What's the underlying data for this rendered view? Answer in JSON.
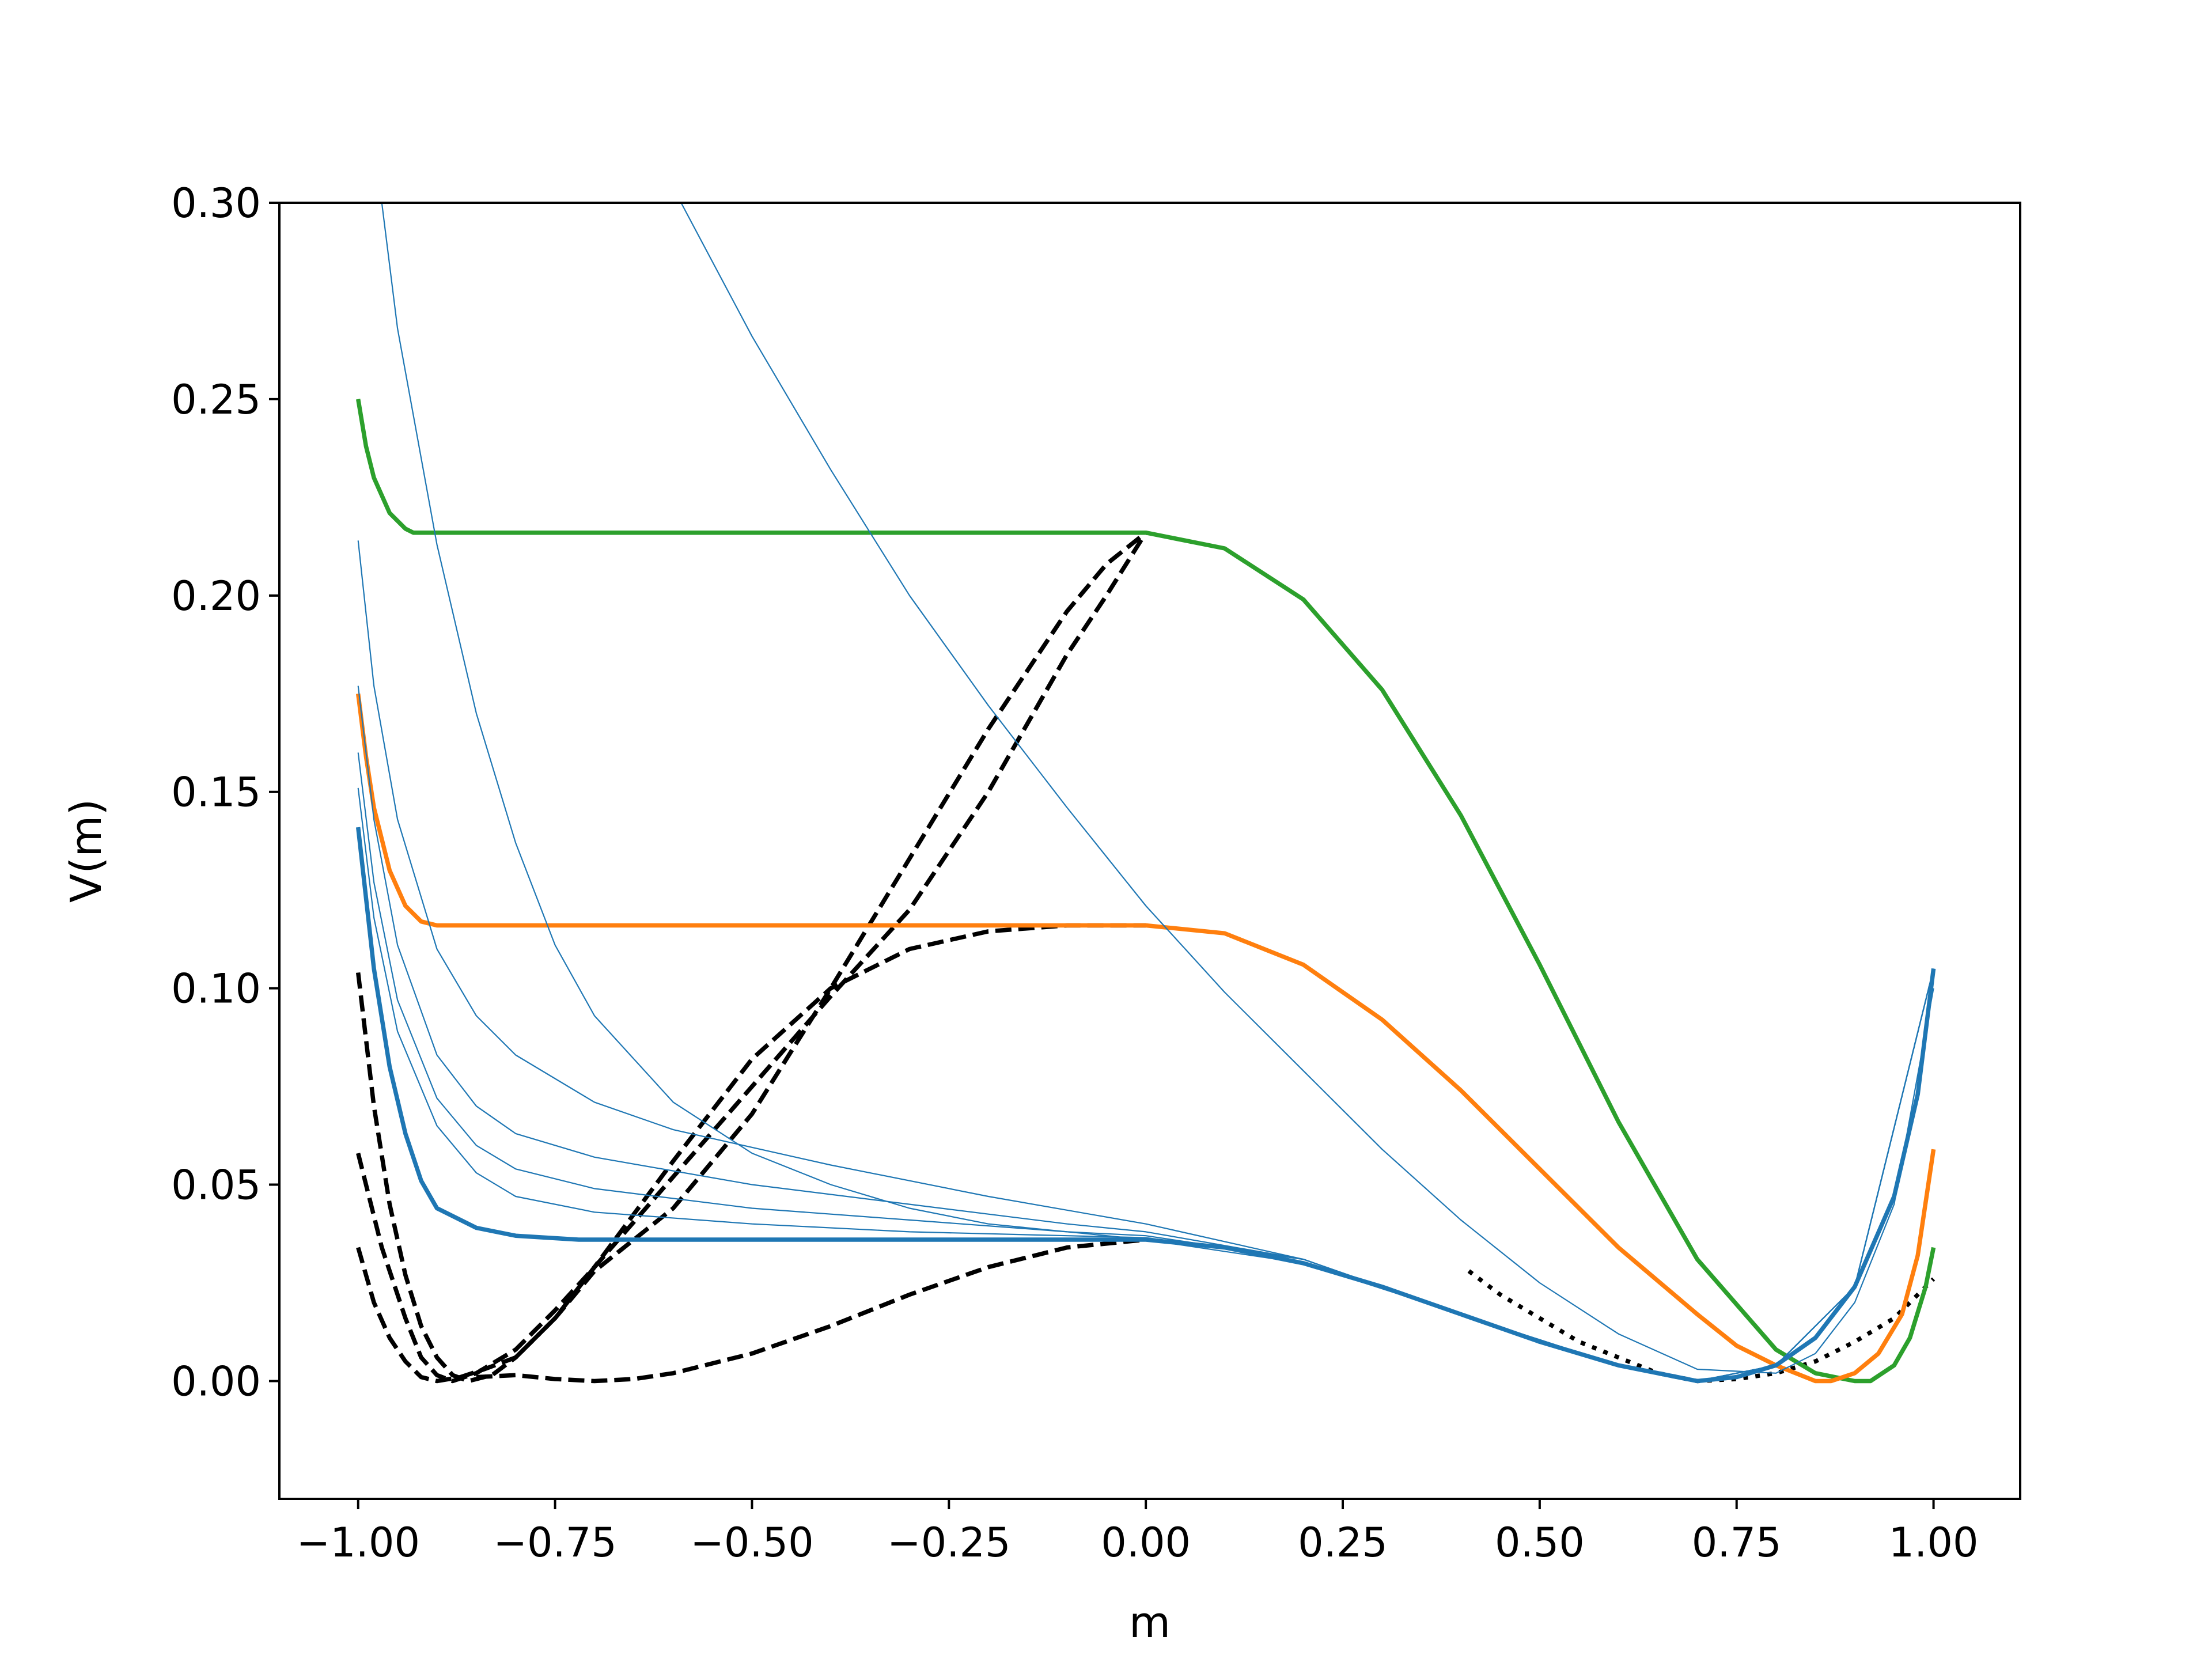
{
  "chart_data": {
    "type": "line",
    "xlabel": "m",
    "ylabel": "V(m)",
    "xlim": [
      -1.1,
      1.11
    ],
    "ylim": [
      -0.03,
      0.3
    ],
    "xticks": [
      -1.0,
      -0.75,
      -0.5,
      -0.25,
      0.0,
      0.25,
      0.5,
      0.75,
      1.0
    ],
    "xtick_labels": [
      "−1.00",
      "−0.75",
      "−0.50",
      "−0.25",
      "0.00",
      "0.25",
      "0.50",
      "0.75",
      "1.00"
    ],
    "yticks": [
      0.0,
      0.05,
      0.1,
      0.15,
      0.2,
      0.25,
      0.3
    ],
    "ytick_labels": [
      "0.00",
      "0.05",
      "0.10",
      "0.15",
      "0.20",
      "0.25",
      "0.30"
    ],
    "grid": false,
    "legend": "none",
    "series": [
      {
        "style": "dashed",
        "color": "#000000",
        "width": "thick",
        "points": [
          [
            -1.0,
            0.104
          ],
          [
            -0.98,
            0.07
          ],
          [
            -0.96,
            0.045
          ],
          [
            -0.94,
            0.027
          ],
          [
            -0.92,
            0.014
          ],
          [
            -0.9,
            0.006
          ],
          [
            -0.88,
            0.0015
          ],
          [
            -0.86,
            0.0
          ],
          [
            -0.83,
            0.0015
          ],
          [
            -0.8,
            0.006
          ],
          [
            -0.75,
            0.016
          ],
          [
            -0.7,
            0.029
          ],
          [
            -0.6,
            0.056
          ],
          [
            -0.5,
            0.082
          ],
          [
            -0.4,
            0.1
          ],
          [
            -0.3,
            0.11
          ],
          [
            -0.2,
            0.1145
          ],
          [
            -0.1,
            0.116
          ],
          [
            0.0,
            0.116
          ]
        ]
      },
      {
        "style": "dashed",
        "color": "#000000",
        "width": "thick",
        "points": [
          [
            -1.0,
            0.058
          ],
          [
            -0.97,
            0.034
          ],
          [
            -0.94,
            0.016
          ],
          [
            -0.92,
            0.006
          ],
          [
            -0.9,
            0.0015
          ],
          [
            -0.88,
            0.0
          ],
          [
            -0.85,
            0.002
          ],
          [
            -0.8,
            0.008
          ],
          [
            -0.75,
            0.018
          ],
          [
            -0.7,
            0.029
          ],
          [
            -0.6,
            0.052
          ],
          [
            -0.5,
            0.075
          ],
          [
            -0.4,
            0.098
          ],
          [
            -0.3,
            0.12
          ],
          [
            -0.2,
            0.15
          ],
          [
            -0.1,
            0.185
          ],
          [
            -0.05,
            0.2
          ],
          [
            0.0,
            0.216
          ]
        ]
      },
      {
        "style": "dashed",
        "color": "#000000",
        "width": "thick",
        "points": [
          [
            -1.0,
            0.034
          ],
          [
            -0.98,
            0.02
          ],
          [
            -0.96,
            0.011
          ],
          [
            -0.94,
            0.005
          ],
          [
            -0.92,
            0.001
          ],
          [
            -0.9,
            0.0
          ],
          [
            -0.87,
            0.001
          ],
          [
            -0.84,
            0.003
          ],
          [
            -0.8,
            0.006
          ],
          [
            -0.75,
            0.016
          ],
          [
            -0.7,
            0.028
          ],
          [
            -0.6,
            0.044
          ],
          [
            -0.5,
            0.068
          ],
          [
            -0.4,
            0.1
          ],
          [
            -0.3,
            0.133
          ],
          [
            -0.2,
            0.166
          ],
          [
            -0.1,
            0.196
          ],
          [
            -0.05,
            0.208
          ],
          [
            0.0,
            0.216
          ]
        ]
      },
      {
        "style": "dashed",
        "color": "#000000",
        "width": "thick",
        "points": [
          [
            -0.85,
            0.001
          ],
          [
            -0.8,
            0.0015
          ],
          [
            -0.75,
            0.0005
          ],
          [
            -0.7,
            0.0
          ],
          [
            -0.65,
            0.0005
          ],
          [
            -0.6,
            0.002
          ],
          [
            -0.5,
            0.007
          ],
          [
            -0.4,
            0.014
          ],
          [
            -0.3,
            0.022
          ],
          [
            -0.2,
            0.029
          ],
          [
            -0.1,
            0.034
          ],
          [
            0.0,
            0.036
          ]
        ]
      },
      {
        "style": "dotted",
        "color": "#000000",
        "width": "thick",
        "points": [
          [
            0.41,
            0.028
          ],
          [
            0.45,
            0.022
          ],
          [
            0.5,
            0.016
          ],
          [
            0.55,
            0.01
          ],
          [
            0.6,
            0.006
          ],
          [
            0.65,
            0.002
          ],
          [
            0.7,
            0.0
          ],
          [
            0.75,
            0.0005
          ],
          [
            0.8,
            0.002
          ],
          [
            0.85,
            0.005
          ],
          [
            0.9,
            0.01
          ],
          [
            0.95,
            0.016
          ],
          [
            1.0,
            0.026
          ]
        ]
      },
      {
        "style": "solid",
        "color": "#2ca02c",
        "width": "thick",
        "points": [
          [
            -1.0,
            0.25
          ],
          [
            -0.99,
            0.238
          ],
          [
            -0.98,
            0.23
          ],
          [
            -0.96,
            0.221
          ],
          [
            -0.94,
            0.217
          ],
          [
            -0.93,
            0.216
          ],
          [
            -0.5,
            0.216
          ],
          [
            0.0,
            0.216
          ],
          [
            0.1,
            0.212
          ],
          [
            0.2,
            0.199
          ],
          [
            0.3,
            0.176
          ],
          [
            0.4,
            0.144
          ],
          [
            0.5,
            0.106
          ],
          [
            0.6,
            0.066
          ],
          [
            0.7,
            0.031
          ],
          [
            0.8,
            0.008
          ],
          [
            0.85,
            0.002
          ],
          [
            0.9,
            0.0
          ],
          [
            0.92,
            0.0
          ],
          [
            0.95,
            0.004
          ],
          [
            0.97,
            0.011
          ],
          [
            0.99,
            0.024
          ],
          [
            1.0,
            0.034
          ]
        ]
      },
      {
        "style": "solid",
        "color": "#ff7f0e",
        "width": "thick",
        "points": [
          [
            -1.0,
            0.175
          ],
          [
            -0.99,
            0.159
          ],
          [
            -0.98,
            0.146
          ],
          [
            -0.96,
            0.13
          ],
          [
            -0.94,
            0.121
          ],
          [
            -0.92,
            0.117
          ],
          [
            -0.9,
            0.116
          ],
          [
            -0.5,
            0.116
          ],
          [
            0.0,
            0.116
          ],
          [
            0.1,
            0.114
          ],
          [
            0.2,
            0.106
          ],
          [
            0.3,
            0.092
          ],
          [
            0.4,
            0.074
          ],
          [
            0.5,
            0.054
          ],
          [
            0.6,
            0.034
          ],
          [
            0.7,
            0.017
          ],
          [
            0.75,
            0.009
          ],
          [
            0.8,
            0.004
          ],
          [
            0.85,
            0.0
          ],
          [
            0.87,
            0.0
          ],
          [
            0.9,
            0.002
          ],
          [
            0.93,
            0.007
          ],
          [
            0.96,
            0.017
          ],
          [
            0.98,
            0.032
          ],
          [
            1.0,
            0.059
          ]
        ]
      },
      {
        "style": "solid",
        "color": "#1f77b4",
        "width": "thick",
        "points": [
          [
            -1.0,
            0.141
          ],
          [
            -0.98,
            0.105
          ],
          [
            -0.96,
            0.08
          ],
          [
            -0.94,
            0.063
          ],
          [
            -0.92,
            0.051
          ],
          [
            -0.9,
            0.044
          ],
          [
            -0.85,
            0.039
          ],
          [
            -0.8,
            0.037
          ],
          [
            -0.72,
            0.036
          ],
          [
            0.0,
            0.036
          ],
          [
            0.1,
            0.034
          ],
          [
            0.2,
            0.03
          ],
          [
            0.3,
            0.024
          ],
          [
            0.4,
            0.017
          ],
          [
            0.5,
            0.01
          ],
          [
            0.6,
            0.004
          ],
          [
            0.7,
            0.0
          ],
          [
            0.75,
            0.001
          ],
          [
            0.8,
            0.004
          ],
          [
            0.85,
            0.011
          ],
          [
            0.9,
            0.024
          ],
          [
            0.95,
            0.047
          ],
          [
            0.98,
            0.073
          ],
          [
            1.0,
            0.105
          ]
        ]
      },
      {
        "style": "solid",
        "color": "#1f77b4",
        "width": "thin",
        "points": [
          [
            -0.97,
            0.3
          ],
          [
            -0.95,
            0.268
          ],
          [
            -0.9,
            0.213
          ],
          [
            -0.85,
            0.17
          ],
          [
            -0.8,
            0.137
          ],
          [
            -0.75,
            0.111
          ],
          [
            -0.7,
            0.093
          ],
          [
            -0.6,
            0.071
          ],
          [
            -0.5,
            0.058
          ],
          [
            -0.4,
            0.05
          ],
          [
            -0.3,
            0.044
          ],
          [
            -0.2,
            0.04
          ],
          [
            0.0,
            0.036
          ],
          [
            0.2,
            0.03
          ],
          [
            0.4,
            0.017
          ],
          [
            0.6,
            0.004
          ],
          [
            0.7,
            0.0
          ],
          [
            0.8,
            0.004
          ],
          [
            0.9,
            0.024
          ],
          [
            1.0,
            0.105
          ]
        ]
      },
      {
        "style": "solid",
        "color": "#1f77b4",
        "width": "thin",
        "points": [
          [
            -0.59,
            0.3
          ],
          [
            -0.5,
            0.266
          ],
          [
            -0.4,
            0.232
          ],
          [
            -0.3,
            0.2
          ],
          [
            -0.2,
            0.172
          ],
          [
            -0.1,
            0.146
          ],
          [
            0.0,
            0.121
          ],
          [
            0.1,
            0.099
          ],
          [
            0.2,
            0.079
          ],
          [
            0.3,
            0.059
          ],
          [
            0.4,
            0.041
          ],
          [
            0.5,
            0.025
          ],
          [
            0.6,
            0.012
          ],
          [
            0.7,
            0.003
          ],
          [
            0.8,
            0.002
          ],
          [
            0.85,
            0.007
          ],
          [
            0.9,
            0.02
          ],
          [
            0.95,
            0.045
          ],
          [
            1.0,
            0.1
          ]
        ]
      },
      {
        "style": "solid",
        "color": "#1f77b4",
        "width": "thin",
        "points": [
          [
            -1.0,
            0.214
          ],
          [
            -0.98,
            0.177
          ],
          [
            -0.95,
            0.143
          ],
          [
            -0.9,
            0.11
          ],
          [
            -0.85,
            0.093
          ],
          [
            -0.8,
            0.083
          ],
          [
            -0.7,
            0.071
          ],
          [
            -0.6,
            0.064
          ],
          [
            -0.4,
            0.055
          ],
          [
            -0.2,
            0.047
          ],
          [
            0.0,
            0.04
          ],
          [
            0.2,
            0.031
          ],
          [
            0.4,
            0.017
          ],
          [
            0.6,
            0.004
          ],
          [
            0.7,
            0.0
          ],
          [
            0.8,
            0.004
          ],
          [
            0.9,
            0.024
          ],
          [
            1.0,
            0.105
          ]
        ]
      },
      {
        "style": "solid",
        "color": "#1f77b4",
        "width": "thin",
        "points": [
          [
            -1.0,
            0.177
          ],
          [
            -0.98,
            0.143
          ],
          [
            -0.95,
            0.111
          ],
          [
            -0.9,
            0.083
          ],
          [
            -0.85,
            0.07
          ],
          [
            -0.8,
            0.063
          ],
          [
            -0.7,
            0.057
          ],
          [
            -0.5,
            0.05
          ],
          [
            -0.3,
            0.045
          ],
          [
            -0.1,
            0.04
          ],
          [
            0.0,
            0.038
          ],
          [
            0.2,
            0.031
          ],
          [
            0.4,
            0.017
          ],
          [
            0.6,
            0.004
          ],
          [
            0.7,
            0.0
          ],
          [
            0.8,
            0.004
          ],
          [
            0.9,
            0.024
          ],
          [
            1.0,
            0.105
          ]
        ]
      },
      {
        "style": "solid",
        "color": "#1f77b4",
        "width": "thin",
        "points": [
          [
            -1.0,
            0.16
          ],
          [
            -0.98,
            0.127
          ],
          [
            -0.95,
            0.097
          ],
          [
            -0.9,
            0.072
          ],
          [
            -0.85,
            0.06
          ],
          [
            -0.8,
            0.054
          ],
          [
            -0.7,
            0.049
          ],
          [
            -0.5,
            0.044
          ],
          [
            -0.3,
            0.041
          ],
          [
            -0.1,
            0.038
          ],
          [
            0.0,
            0.037
          ],
          [
            0.2,
            0.031
          ],
          [
            0.4,
            0.017
          ],
          [
            0.6,
            0.004
          ],
          [
            0.7,
            0.0
          ],
          [
            0.8,
            0.004
          ],
          [
            0.9,
            0.024
          ],
          [
            1.0,
            0.105
          ]
        ]
      },
      {
        "style": "solid",
        "color": "#1f77b4",
        "width": "thin",
        "points": [
          [
            -1.0,
            0.151
          ],
          [
            -0.98,
            0.118
          ],
          [
            -0.95,
            0.089
          ],
          [
            -0.9,
            0.065
          ],
          [
            -0.85,
            0.053
          ],
          [
            -0.8,
            0.047
          ],
          [
            -0.7,
            0.043
          ],
          [
            -0.5,
            0.04
          ],
          [
            -0.3,
            0.038
          ],
          [
            -0.1,
            0.037
          ],
          [
            0.0,
            0.0365
          ],
          [
            0.2,
            0.031
          ],
          [
            0.4,
            0.017
          ],
          [
            0.6,
            0.004
          ],
          [
            0.7,
            0.0
          ],
          [
            0.8,
            0.004
          ],
          [
            0.9,
            0.024
          ],
          [
            1.0,
            0.105
          ]
        ]
      }
    ]
  }
}
